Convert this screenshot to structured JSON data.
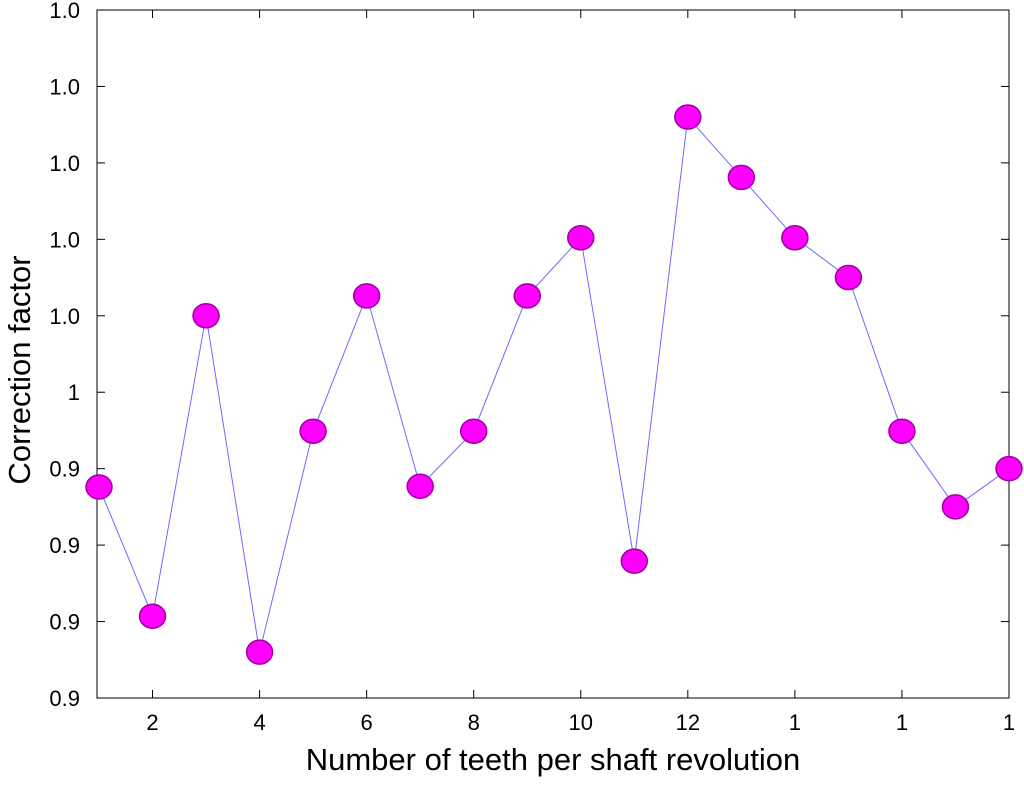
{
  "chart_data": {
    "type": "line",
    "x_label": "Number of teeth per shaft revolution",
    "y_label": "Correction factor",
    "x": [
      1,
      2,
      3,
      4,
      5,
      6,
      7,
      8,
      9,
      10,
      11,
      12,
      13,
      14,
      15,
      16,
      17,
      18
    ],
    "series": [
      {
        "color": "#ff00ff",
        "line_color": "#6b6bff",
        "values": [
          0.9876,
          0.9707,
          1.01,
          0.966,
          0.9949,
          1.0126,
          0.9877,
          0.9949,
          1.0126,
          1.0202,
          0.9779,
          1.036,
          1.0281,
          1.0202,
          1.015,
          0.9949,
          0.985,
          0.99
        ]
      }
    ],
    "xlim": [
      1,
      18
    ],
    "ylim": [
      0.96,
      1.05
    ],
    "xticks": [
      2,
      4,
      6,
      8,
      10,
      12,
      {
        "value": 14,
        "label": "1"
      },
      {
        "value": 16,
        "label": "1"
      },
      {
        "value": 18,
        "label": "1"
      }
    ],
    "yticks": [
      {
        "value": 0.96,
        "label": "0.9"
      },
      {
        "value": 0.97,
        "label": "0.9"
      },
      {
        "value": 0.98,
        "label": "0.9"
      },
      {
        "value": 0.99,
        "label": "0.9"
      },
      {
        "value": 1.0,
        "label": "1"
      },
      {
        "value": 1.01,
        "label": "1.0"
      },
      {
        "value": 1.02,
        "label": "1.0"
      },
      {
        "value": 1.03,
        "label": "1.0"
      },
      {
        "value": 1.04,
        "label": "1.0"
      },
      {
        "value": 1.05,
        "label": "1.0"
      }
    ]
  }
}
